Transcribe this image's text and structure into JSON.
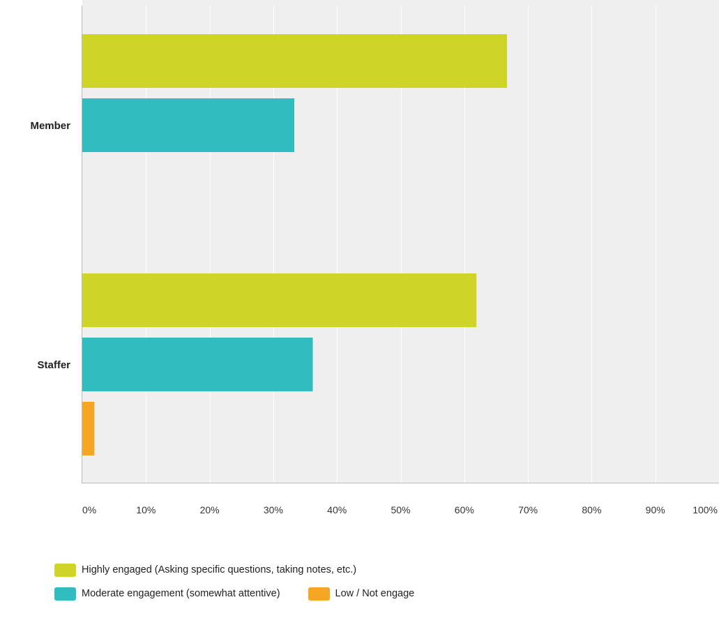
{
  "chart_data": {
    "type": "bar",
    "orientation": "horizontal",
    "title": "",
    "xlabel": "",
    "ylabel": "",
    "categories": [
      "Member",
      "Staffer"
    ],
    "series": [
      {
        "name": "Highly engaged (Asking specific questions, taking notes, etc.)",
        "color": "#cfd428",
        "values": [
          66.7,
          61.9
        ]
      },
      {
        "name": "Moderate engagement (somewhat attentive)",
        "color": "#31bdc0",
        "values": [
          33.3,
          36.2
        ]
      },
      {
        "name": "Low / Not engage",
        "color": "#f5a623",
        "values": [
          0,
          1.9
        ]
      }
    ],
    "xlim": [
      0,
      100
    ],
    "xticks": [
      "0%",
      "10%",
      "20%",
      "30%",
      "40%",
      "50%",
      "60%",
      "70%",
      "80%",
      "90%",
      "100%"
    ],
    "grid": true,
    "legend_position": "bottom"
  }
}
